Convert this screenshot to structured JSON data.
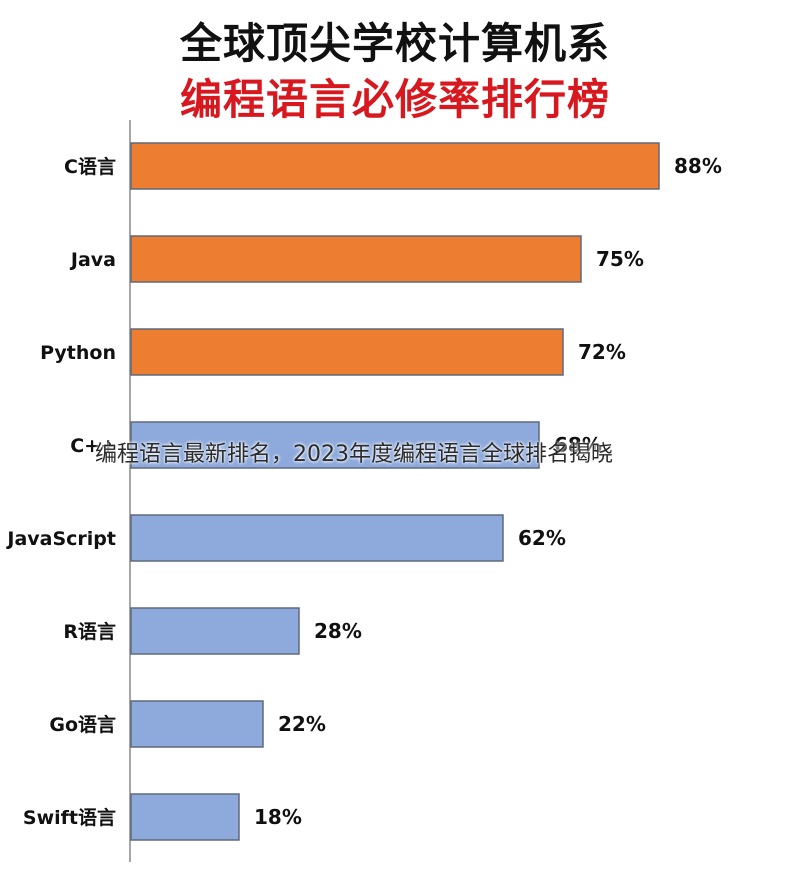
{
  "header": {
    "title_line1": "全球顶尖学校计算机系",
    "title_line2": "编程语言必修率排行榜"
  },
  "overlay": {
    "caption": "编程语言最新排名，2023年度编程语言全球排名揭晓"
  },
  "colors": {
    "title_line1": "#111111",
    "title_line2": "#d7191f",
    "bar_orange": "#ed7d31",
    "bar_blue": "#8eaadc",
    "bar_stroke": "#5e6a7a",
    "axis": "#888888"
  },
  "chart_data": {
    "type": "bar",
    "orientation": "horizontal",
    "title": "全球顶尖学校计算机系 编程语言必修率排行榜",
    "xlabel": "",
    "ylabel": "",
    "xlim": [
      0,
      100
    ],
    "grid": false,
    "legend": "none",
    "categories": [
      "C语言",
      "Java",
      "Python",
      "C++",
      "JavaScript",
      "R语言",
      "Go语言",
      "Swift语言"
    ],
    "values": [
      88,
      75,
      72,
      68,
      62,
      28,
      22,
      18
    ],
    "value_labels": [
      "88%",
      "75%",
      "72%",
      "68%",
      "62%",
      "28%",
      "22%",
      "18%"
    ],
    "bar_colors": [
      "orange",
      "orange",
      "orange",
      "blue",
      "blue",
      "blue",
      "blue",
      "blue"
    ]
  }
}
